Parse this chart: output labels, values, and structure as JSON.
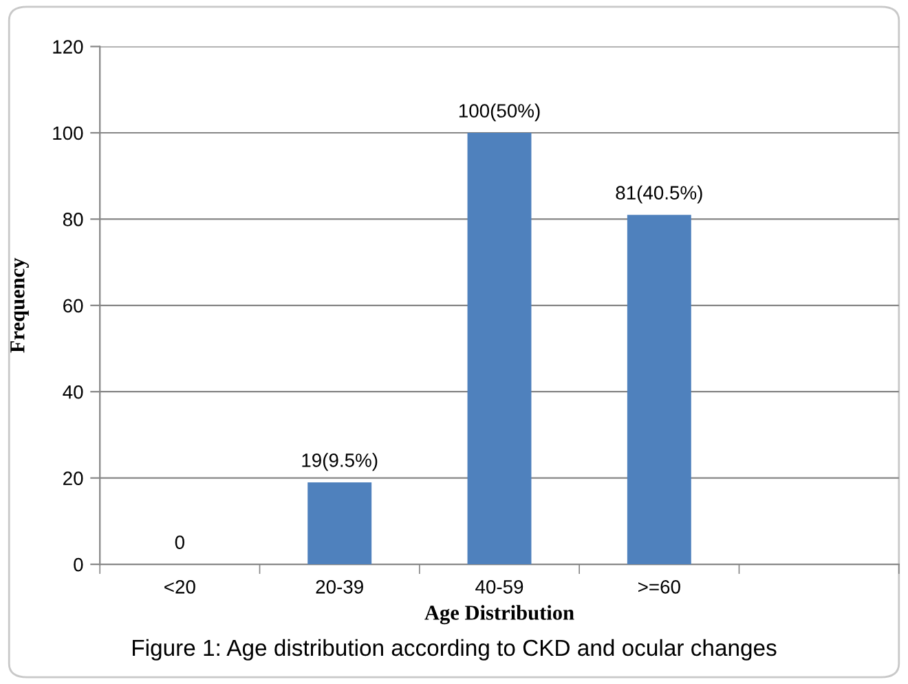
{
  "chart_data": {
    "type": "bar",
    "xlabel": "Age Distribution",
    "ylabel": "Frequency",
    "categories": [
      "<20",
      "20-39",
      "40-59",
      ">=60",
      null
    ],
    "values": [
      0,
      19,
      100,
      81,
      null
    ],
    "value_labels": [
      "0",
      "19(9.5%)",
      "100(50%)",
      "81(40.5%)",
      null
    ],
    "color": "#4f81bd",
    "ylim": [
      0,
      120
    ],
    "yticks": [
      0,
      20,
      40,
      60,
      80,
      100,
      120
    ],
    "grid": "y",
    "annotations": [
      "Figure 1: Age distribution according to CKD and ocular changes"
    ]
  }
}
